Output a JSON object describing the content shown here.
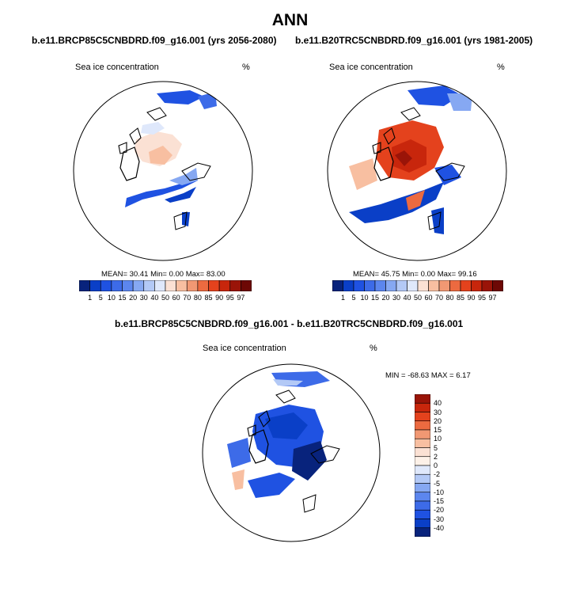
{
  "header": {
    "title": "ANN"
  },
  "chart_data": [
    {
      "type": "polar-map",
      "title": "b.e11.BRCP85C5CNBDRD.f09_g16.001 (yrs 2056-2080)",
      "variable": "Sea ice concentration",
      "units": "%",
      "stats": {
        "mean_label": "MEAN=",
        "mean": "30.41",
        "min_label": "Min=",
        "min": "0.00",
        "max_label": "Max=",
        "max": "83.00"
      },
      "colorbar": {
        "orientation": "horizontal",
        "levels": [
          "1",
          "5",
          "10",
          "15",
          "20",
          "30",
          "40",
          "50",
          "60",
          "70",
          "80",
          "85",
          "90",
          "95",
          "97"
        ],
        "colors": [
          "#08237c",
          "#0a3fc7",
          "#1f52e2",
          "#3d6be8",
          "#5c86ee",
          "#86a8f2",
          "#b3c9f6",
          "#dfe8fb",
          "#fbe1d4",
          "#f8bfa1",
          "#f19873",
          "#ec6a40",
          "#e4421d",
          "#c8260c",
          "#9a1408",
          "#6d0805"
        ]
      }
    },
    {
      "type": "polar-map",
      "title": "b.e11.B20TRC5CNBDRD.f09_g16.001 (yrs 1981-2005)",
      "variable": "Sea ice concentration",
      "units": "%",
      "stats": {
        "mean_label": "MEAN=",
        "mean": "45.75",
        "min_label": "Min=",
        "min": "0.00",
        "max_label": "Max=",
        "max": "99.16"
      },
      "colorbar": {
        "orientation": "horizontal",
        "levels": [
          "1",
          "5",
          "10",
          "15",
          "20",
          "30",
          "40",
          "50",
          "60",
          "70",
          "80",
          "85",
          "90",
          "95",
          "97"
        ],
        "colors": [
          "#08237c",
          "#0a3fc7",
          "#1f52e2",
          "#3d6be8",
          "#5c86ee",
          "#86a8f2",
          "#b3c9f6",
          "#dfe8fb",
          "#fbe1d4",
          "#f8bfa1",
          "#f19873",
          "#ec6a40",
          "#e4421d",
          "#c8260c",
          "#9a1408",
          "#6d0805"
        ]
      }
    },
    {
      "type": "polar-map",
      "title": "b.e11.BRCP85C5CNBDRD.f09_g16.001 - b.e11.B20TRC5CNBDRD.f09_g16.001",
      "variable": "Sea ice concentration",
      "units": "%",
      "stats": {
        "min_label": "MIN =",
        "min": "-68.63",
        "max_label": "MAX =",
        "max": "6.17"
      },
      "colorbar": {
        "orientation": "vertical",
        "levels": [
          "40",
          "30",
          "20",
          "15",
          "10",
          "5",
          "2",
          "0",
          "-2",
          "-5",
          "-10",
          "-15",
          "-20",
          "-30",
          "-40"
        ],
        "colors": [
          "#9a1408",
          "#c8260c",
          "#e4421d",
          "#ec6a40",
          "#f19873",
          "#f8bfa1",
          "#fbe1d4",
          "#fdf1e8",
          "#dfe8fb",
          "#b3c9f6",
          "#86a8f2",
          "#5c86ee",
          "#3d6be8",
          "#1f52e2",
          "#0a3fc7",
          "#08237c"
        ]
      }
    }
  ]
}
